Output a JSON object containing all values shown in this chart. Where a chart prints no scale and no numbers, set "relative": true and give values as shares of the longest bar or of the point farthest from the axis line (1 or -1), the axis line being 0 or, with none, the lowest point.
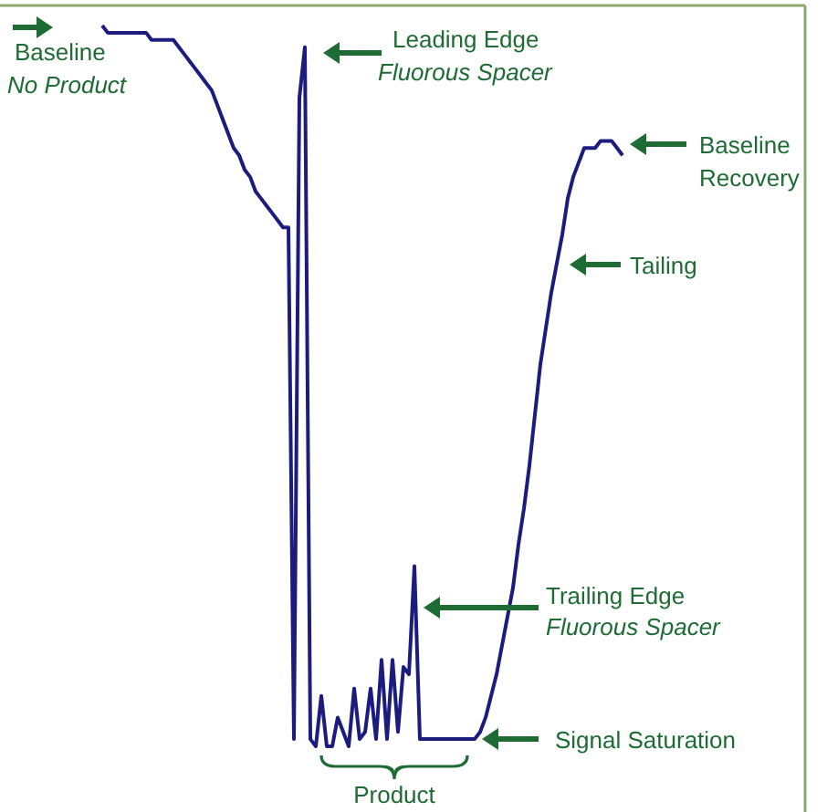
{
  "chart_data": {
    "type": "line",
    "relative": true,
    "categories": [
      null,
      null,
      null,
      null,
      null,
      null,
      null,
      null,
      null,
      null,
      null,
      null,
      null,
      null,
      null,
      null,
      null,
      null,
      null,
      null,
      null,
      null,
      null,
      null,
      null,
      null,
      null,
      null,
      null,
      null,
      null,
      null,
      null,
      null,
      null,
      null,
      null,
      null,
      null,
      null,
      null,
      null,
      null,
      null,
      null,
      null,
      null,
      null,
      null,
      null,
      null,
      null,
      null,
      null,
      null,
      null,
      null,
      null,
      null,
      null,
      null,
      null,
      null,
      null,
      null,
      null,
      null,
      null,
      null,
      null,
      null,
      null,
      null,
      null,
      null,
      null,
      null,
      null,
      null,
      null,
      null,
      null,
      null,
      null,
      null,
      null,
      null,
      null,
      null,
      null,
      null,
      null,
      null,
      null,
      null,
      null
    ],
    "series": [
      {
        "color": "#1c1c7f",
        "values": [
          1.0,
          0.99,
          0.99,
          0.99,
          0.99,
          0.99,
          0.99,
          0.99,
          0.99,
          0.98,
          0.98,
          0.98,
          0.98,
          0.98,
          0.97,
          0.96,
          0.95,
          0.94,
          0.93,
          0.92,
          0.91,
          0.89,
          0.87,
          0.85,
          0.83,
          0.82,
          0.8,
          0.79,
          0.77,
          0.76,
          0.75,
          0.74,
          0.73,
          0.72,
          0.72,
          0.01,
          0.9,
          0.97,
          0.01,
          0,
          0.07,
          0,
          0,
          0.04,
          0.02,
          0,
          0.08,
          0.01,
          0.02,
          0.08,
          0.01,
          0.12,
          0.01,
          0.12,
          0.02,
          0.11,
          0.1,
          0.25,
          0.01,
          0.01,
          0.01,
          0.01,
          0.01,
          0.01,
          0.01,
          0.01,
          0.01,
          0.01,
          0.01,
          0.02,
          0.04,
          0.07,
          0.1,
          0.14,
          0.18,
          0.22,
          0.28,
          0.33,
          0.39,
          0.46,
          0.53,
          0.58,
          0.63,
          0.67,
          0.71,
          0.76,
          0.79,
          0.81,
          0.83,
          0.83,
          0.83,
          0.84,
          0.84,
          0.84,
          0.83,
          0.82
        ]
      }
    ],
    "annotations": [
      "Baseline",
      "No Product",
      "Leading Edge",
      "Fluorous Spacer",
      "Baseline",
      "Recovery",
      "Tailing",
      "Trailing Edge",
      "Fluorous Spacer",
      "Signal Saturation",
      "Product"
    ],
    "tick_labels": false
  }
}
